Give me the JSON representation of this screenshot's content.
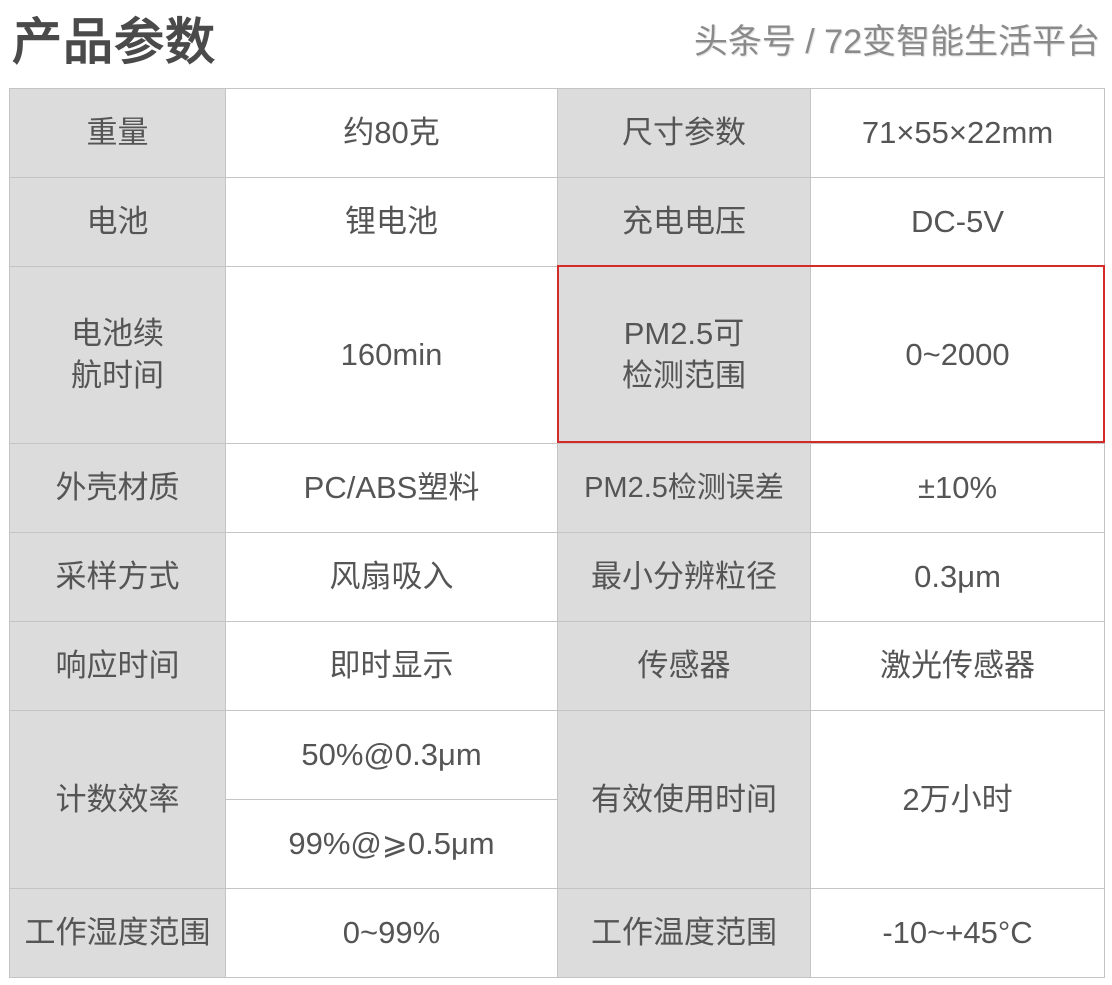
{
  "title": "产品参数",
  "rows": [
    {
      "k1": "重量",
      "v1": "约80克",
      "k2": "尺寸参数",
      "v2": "71×55×22mm"
    },
    {
      "k1": "电池",
      "v1": "锂电池",
      "k2": "充电电压",
      "v2": "DC-5V"
    },
    {
      "k1a": "电池续",
      "k1b": "航时间",
      "v1": "160min",
      "k2a": "PM2.5可",
      "k2b": "检测范围",
      "v2": "0~2000"
    },
    {
      "k1": "外壳材质",
      "v1": "PC/ABS塑料",
      "k2": "PM2.5检测误差",
      "v2": "±10%"
    },
    {
      "k1": "采样方式",
      "v1": "风扇吸入",
      "k2": "最小分辨粒径",
      "v2": "0.3μm"
    },
    {
      "k1": "响应时间",
      "v1": "即时显示",
      "k2": "传感器",
      "v2": "激光传感器"
    },
    {
      "k1": "计数效率",
      "v1a": "50%@0.3μm",
      "v1b": "99%@⩾0.5μm",
      "k2": "有效使用时间",
      "v2": "2万小时"
    },
    {
      "k1": "工作湿度范围",
      "v1": "0~99%",
      "k2": "工作温度范围",
      "v2": "-10~+45°C"
    }
  ],
  "highlight_color": "#d42a2a",
  "watermark": "头条号 / 72变智能生活平台"
}
